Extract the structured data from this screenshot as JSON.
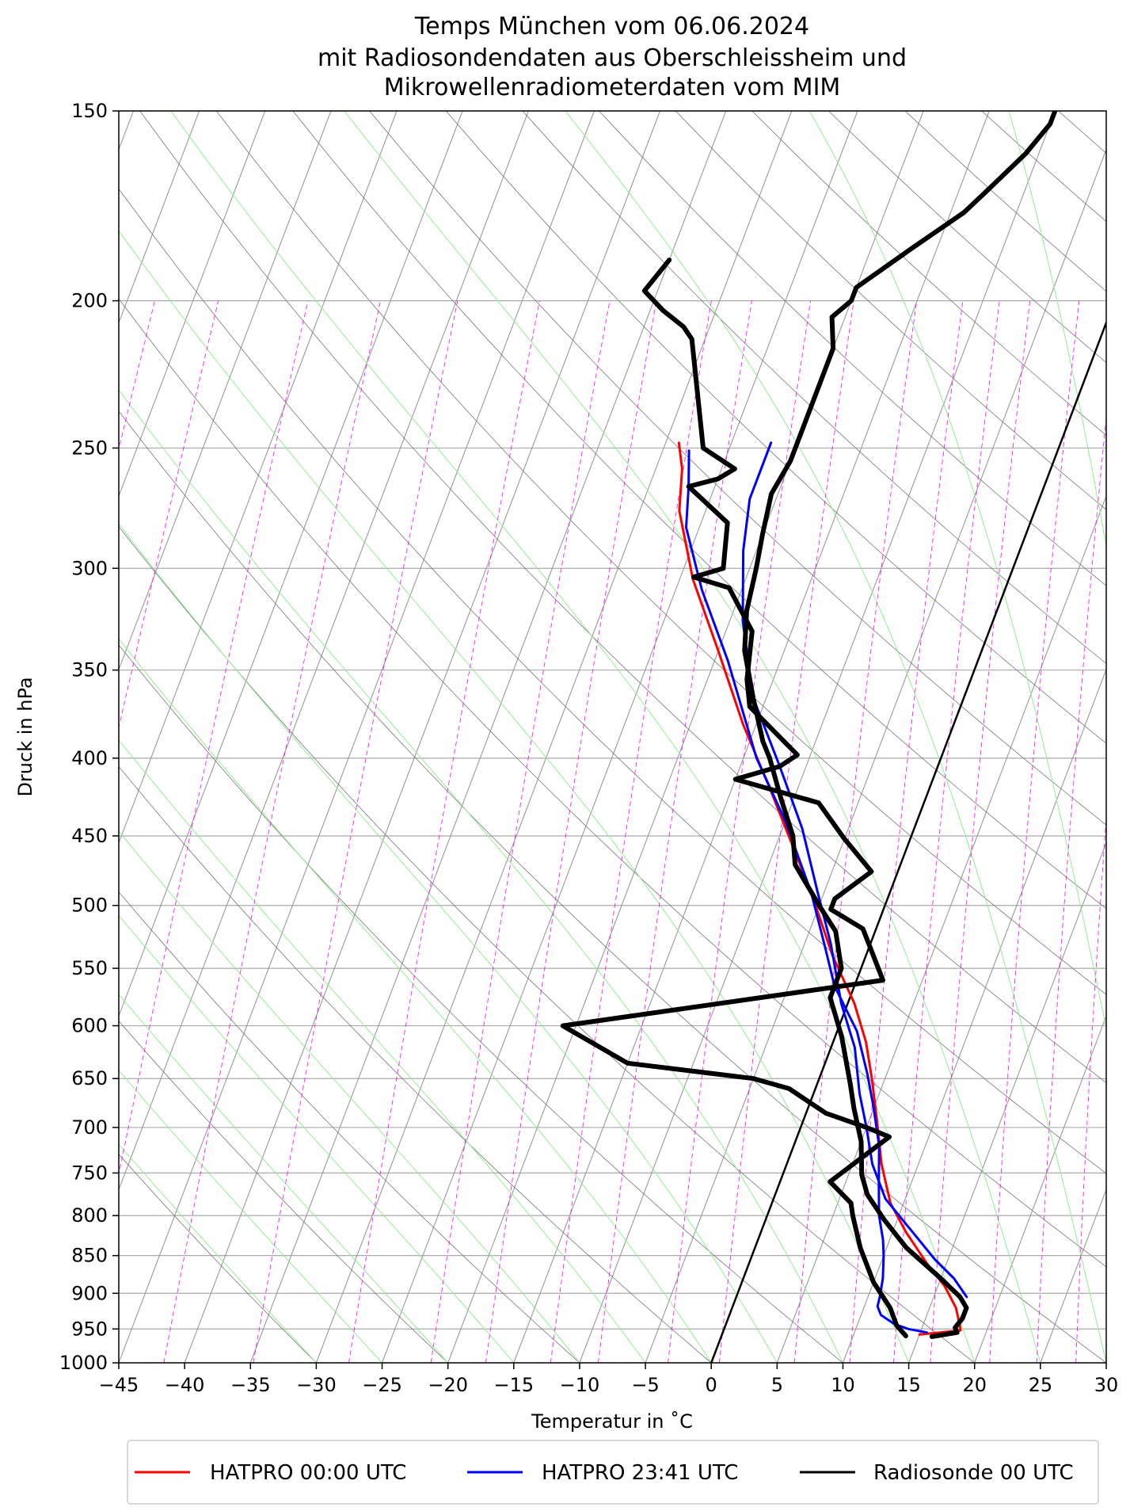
{
  "chart_data": {
    "type": "line",
    "title_lines": [
      "Temps München vom 06.06.2024",
      "mit Radiosondendaten aus Oberschleissheim und",
      "Mikrowellenradiometerdaten vom MIM"
    ],
    "xlabel": "Temperatur in ˚C",
    "ylabel": "Druck in hPa",
    "xlim": [
      -45,
      30
    ],
    "ylim": [
      1000,
      150
    ],
    "y_scale": "log",
    "skew_t": true,
    "grid": true,
    "legend_position": "bottom",
    "x_ticks": [
      -45,
      -40,
      -35,
      -30,
      -25,
      -20,
      -15,
      -10,
      -5,
      0,
      5,
      10,
      15,
      20,
      25,
      30
    ],
    "x_tick_labels": [
      "−45",
      "−40",
      "−35",
      "−30",
      "−25",
      "−20",
      "−15",
      "−10",
      "−5",
      "0",
      "5",
      "10",
      "15",
      "20",
      "25",
      "30"
    ],
    "y_ticks": [
      150,
      200,
      250,
      300,
      350,
      400,
      450,
      500,
      550,
      600,
      650,
      700,
      750,
      800,
      850,
      900,
      950,
      1000
    ],
    "y_tick_labels": [
      "150",
      "200",
      "250",
      "300",
      "350",
      "400",
      "450",
      "500",
      "550",
      "600",
      "650",
      "700",
      "750",
      "800",
      "850",
      "900",
      "950",
      "1000"
    ],
    "colors": {
      "hatpro_0000": "#ff0000",
      "hatpro_2341": "#0000ff",
      "radiosonde": "#000000",
      "dry_adiabats": "#808080",
      "moist_adiabats": "#90ee90",
      "mixing_ratio": "#ff00ff",
      "isotherm_zero": "#000000"
    },
    "series": [
      {
        "name": "HATPRO 00:00 UTC",
        "color": "#ff0000",
        "points": [
          [
            15.0,
            958
          ],
          [
            16.5,
            955
          ],
          [
            18.0,
            952
          ],
          [
            17.8,
            945
          ],
          [
            17.0,
            920
          ],
          [
            15.5,
            890
          ],
          [
            13.5,
            860
          ],
          [
            11.0,
            820
          ],
          [
            9.0,
            785
          ],
          [
            7.2,
            740
          ],
          [
            5.5,
            690
          ],
          [
            4.0,
            650
          ],
          [
            2.5,
            615
          ],
          [
            0.5,
            580
          ],
          [
            -2.5,
            540
          ],
          [
            -6,
            490
          ],
          [
            -12,
            420
          ],
          [
            -16,
            380
          ],
          [
            -20,
            340
          ],
          [
            -24,
            305
          ],
          [
            -27,
            275
          ],
          [
            -28,
            258
          ],
          [
            -29,
            248
          ]
        ]
      },
      {
        "name": "HATPRO 23:41 UTC",
        "color": "#0000ff",
        "points": [
          [
            15.5,
            955
          ],
          [
            14.0,
            950
          ],
          [
            12.8,
            943
          ],
          [
            11.5,
            930
          ],
          [
            11.0,
            918
          ],
          [
            10.9,
            905
          ],
          [
            10.6,
            880
          ],
          [
            10.0,
            850
          ],
          [
            9.5,
            830
          ],
          [
            8.5,
            800
          ],
          [
            7.5,
            760
          ],
          [
            6.5,
            720
          ],
          [
            5.0,
            680
          ],
          [
            3.5,
            645
          ],
          [
            1.5,
            605
          ],
          [
            -1.5,
            565
          ],
          [
            -3.5,
            530
          ],
          [
            -6,
            490
          ],
          [
            -10,
            440
          ],
          [
            -14,
            400
          ],
          [
            -19,
            345
          ],
          [
            -23,
            310
          ],
          [
            -26,
            282
          ],
          [
            -27,
            265
          ],
          [
            -28,
            251
          ]
        ]
      },
      {
        "name": "HATPRO 23:41 UTC (secondary)",
        "color": "#0000ff",
        "legend": false,
        "points": [
          [
            17.5,
            905
          ],
          [
            16.0,
            880
          ],
          [
            14.0,
            855
          ],
          [
            11.5,
            820
          ],
          [
            8.5,
            780
          ],
          [
            6.5,
            740
          ],
          [
            5.0,
            700
          ],
          [
            3.5,
            665
          ],
          [
            1.8,
            620
          ],
          [
            -0.5,
            580
          ],
          [
            -3.0,
            530
          ],
          [
            -5.5,
            490
          ],
          [
            -8.5,
            445
          ],
          [
            -12,
            405
          ],
          [
            -16,
            365
          ],
          [
            -19,
            325
          ],
          [
            -21,
            292
          ],
          [
            -22,
            270
          ],
          [
            -22,
            258
          ],
          [
            -22,
            248
          ]
        ]
      },
      {
        "name": "Radiosonde 00 UTC",
        "color": "#000000",
        "points": [
          [
            14,
            960
          ],
          [
            13,
            945
          ],
          [
            12,
            920
          ],
          [
            10,
            885
          ],
          [
            8,
            840
          ],
          [
            6.5,
            800
          ],
          [
            6,
            785
          ],
          [
            3.8,
            760
          ],
          [
            7,
            710
          ],
          [
            5,
            700
          ],
          [
            1.5,
            685
          ],
          [
            -2,
            660
          ],
          [
            -5,
            650
          ],
          [
            -15,
            635
          ],
          [
            -21,
            600
          ],
          [
            2,
            560
          ],
          [
            -1,
            518
          ],
          [
            -4,
            503
          ],
          [
            -4,
            495
          ],
          [
            -2,
            475
          ],
          [
            -5,
            452
          ],
          [
            -8,
            428
          ],
          [
            -15,
            413
          ],
          [
            -12,
            405
          ],
          [
            -11,
            398
          ],
          [
            -16,
            370
          ],
          [
            -17,
            355
          ],
          [
            -18,
            330
          ],
          [
            -21,
            309
          ],
          [
            -24,
            304
          ],
          [
            -22,
            300
          ],
          [
            -23,
            280
          ],
          [
            -27,
            265
          ],
          [
            -25,
            262
          ],
          [
            -24,
            258
          ],
          [
            -27,
            250
          ],
          [
            -31,
            212
          ],
          [
            -32,
            208
          ],
          [
            -34,
            203
          ],
          [
            -36,
            197
          ],
          [
            -35,
            188
          ]
        ]
      },
      {
        "name": "Radiosonde 00 UTC (temperature)",
        "color": "#000000",
        "legend": false,
        "points": [
          [
            16.0,
            961
          ],
          [
            17.8,
            955
          ],
          [
            17.5,
            948
          ],
          [
            17.8,
            935
          ],
          [
            17.8,
            920
          ],
          [
            17.0,
            905
          ],
          [
            15.0,
            880
          ],
          [
            11.5,
            840
          ],
          [
            9.0,
            805
          ],
          [
            7.0,
            775
          ],
          [
            6.0,
            752
          ],
          [
            5.0,
            715
          ],
          [
            3.5,
            680
          ],
          [
            2.5,
            655
          ],
          [
            0.5,
            610
          ],
          [
            -1.5,
            575
          ],
          [
            -1.5,
            560
          ],
          [
            -1.5,
            550
          ],
          [
            -3.0,
            520
          ],
          [
            -5.0,
            500
          ],
          [
            -8.0,
            470
          ],
          [
            -9.0,
            450
          ],
          [
            -11,
            425
          ],
          [
            -13,
            400
          ],
          [
            -14,
            390
          ],
          [
            -16,
            365
          ],
          [
            -18,
            340
          ],
          [
            -19,
            320
          ],
          [
            -19.5,
            300
          ],
          [
            -20,
            285
          ],
          [
            -20.5,
            268
          ],
          [
            -20,
            255
          ],
          [
            -20,
            245
          ],
          [
            -20,
            215
          ],
          [
            -21,
            205
          ],
          [
            -20,
            200
          ],
          [
            -20,
            196
          ],
          [
            -17,
            185
          ],
          [
            -14,
            175
          ],
          [
            -13,
            170
          ],
          [
            -11,
            160
          ],
          [
            -10,
            153
          ],
          [
            -10,
            150
          ]
        ]
      }
    ],
    "reference_lines": [
      {
        "name": "0 ˚C isotherm",
        "points": [
          [
            0,
            1000
          ],
          [
            28,
            270
          ]
        ]
      }
    ],
    "legend": [
      "HATPRO 00:00 UTC",
      "HATPRO 23:41 UTC",
      "Radiosonde 00 UTC"
    ]
  }
}
